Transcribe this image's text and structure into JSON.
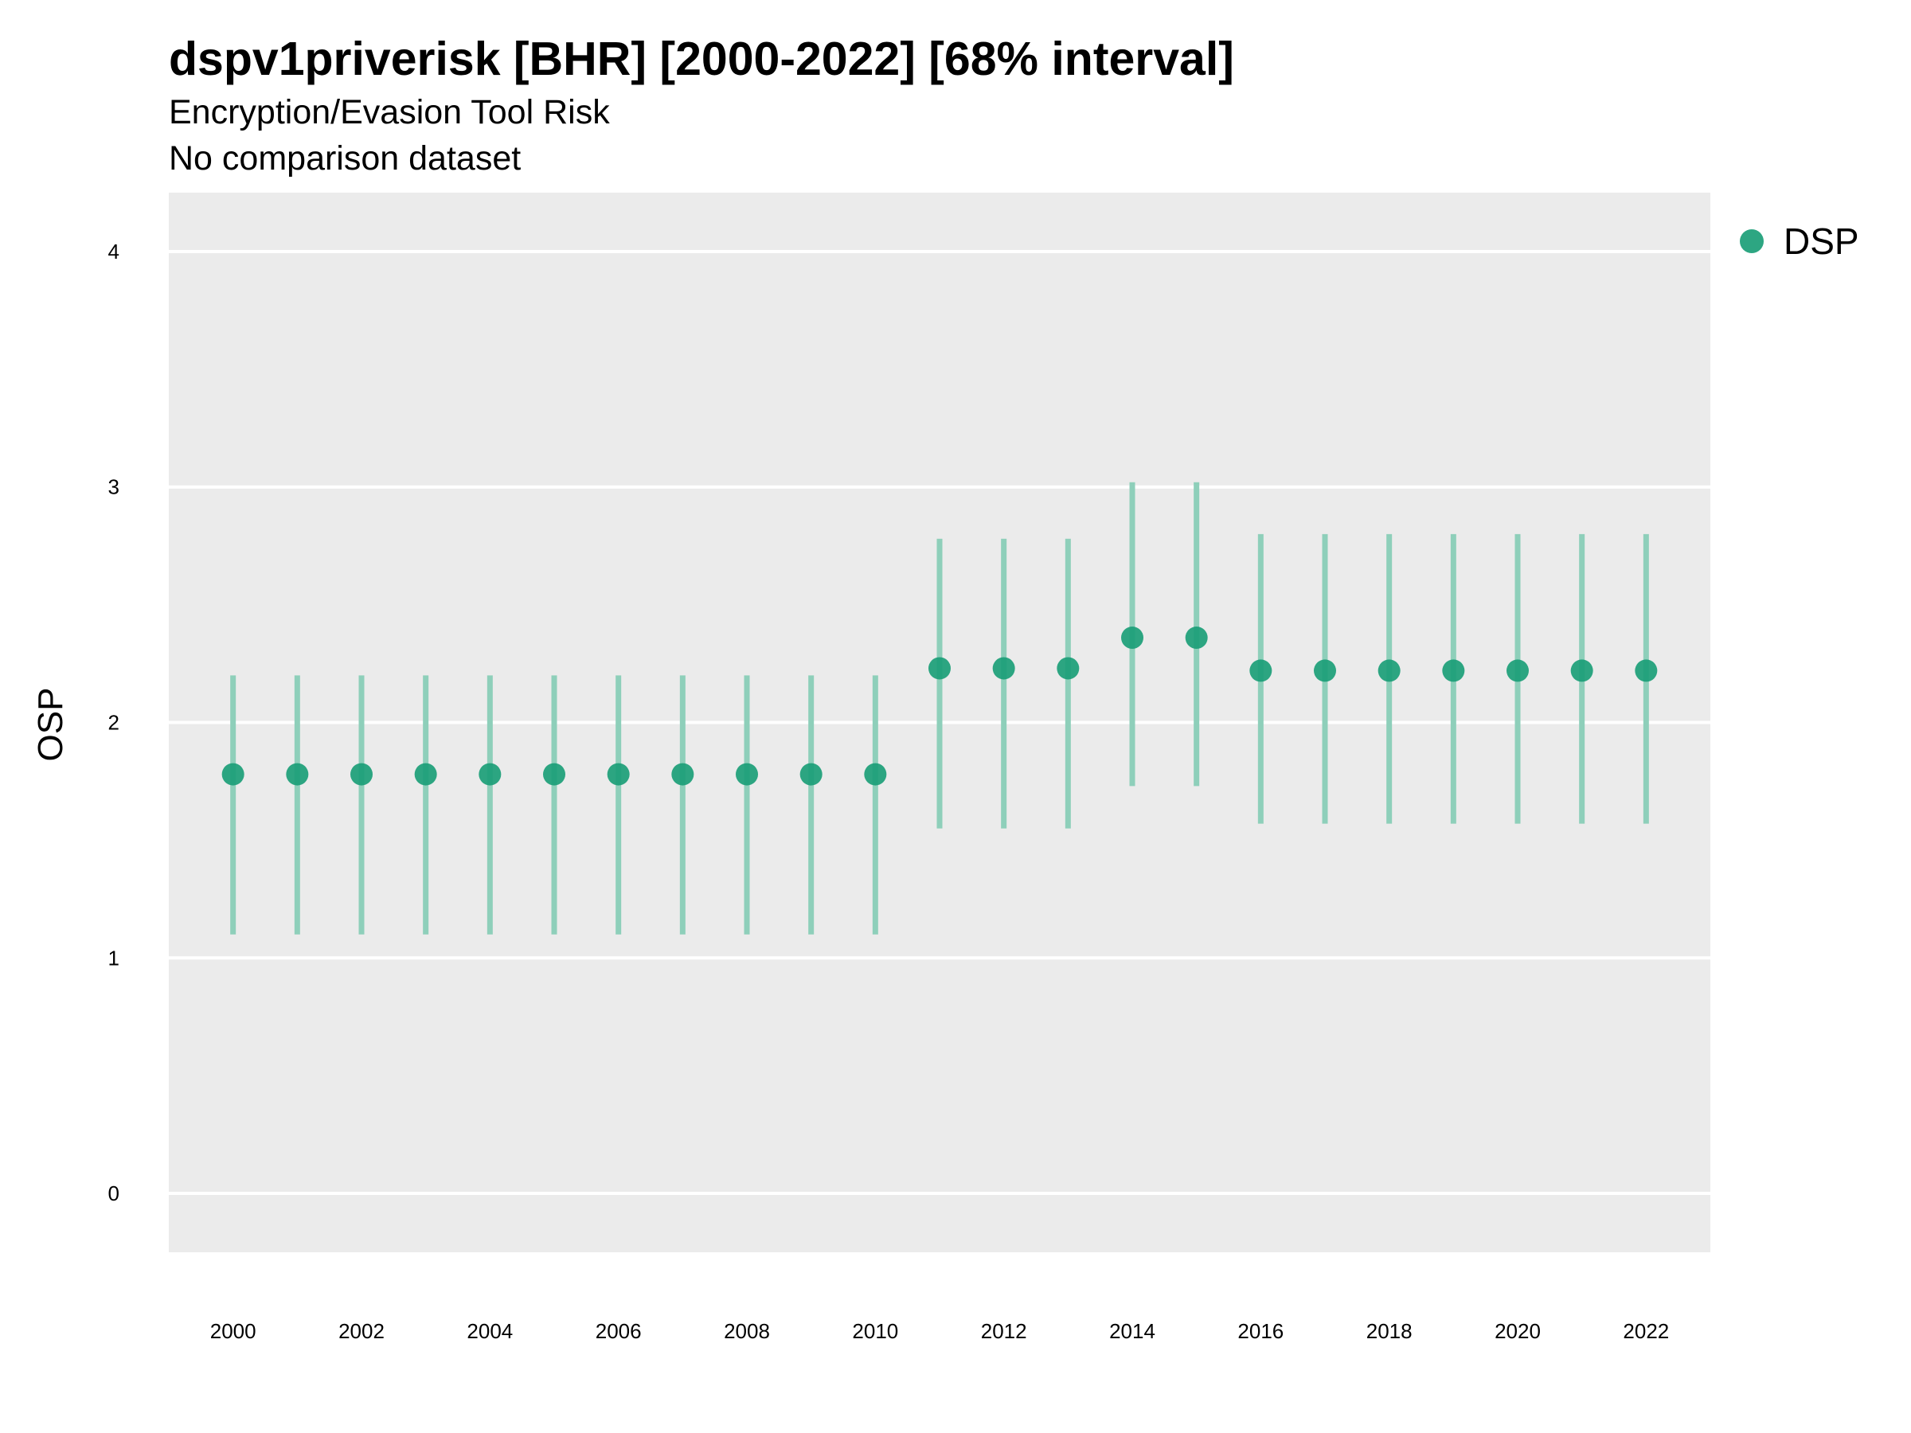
{
  "chart_data": {
    "type": "scatter",
    "title": "dspv1priverisk [BHR] [2000-2022] [68% interval]",
    "subtitle": "Encryption/Evasion Tool Risk",
    "subtitle2": "No comparison dataset",
    "xlabel": "",
    "ylabel": "OSP",
    "ylim": [
      -0.25,
      4.25
    ],
    "yticks": [
      0,
      1,
      2,
      3,
      4
    ],
    "xlim": [
      1999,
      2023
    ],
    "xticks": [
      2000,
      2002,
      2004,
      2006,
      2008,
      2010,
      2012,
      2014,
      2016,
      2018,
      2020,
      2022
    ],
    "grid": true,
    "legend_position": "right",
    "colors": {
      "panel_background": "#EBEBEB",
      "gridline": "#FFFFFF",
      "point": "#1B9E77",
      "interval": "#8ECFBA"
    },
    "series": [
      {
        "name": "DSP",
        "x": [
          2000,
          2001,
          2002,
          2003,
          2004,
          2005,
          2006,
          2007,
          2008,
          2009,
          2010,
          2011,
          2012,
          2013,
          2014,
          2015,
          2016,
          2017,
          2018,
          2019,
          2020,
          2021,
          2022
        ],
        "y": [
          1.78,
          1.78,
          1.78,
          1.78,
          1.78,
          1.78,
          1.78,
          1.78,
          1.78,
          1.78,
          1.78,
          2.23,
          2.23,
          2.23,
          2.36,
          2.36,
          2.22,
          2.22,
          2.22,
          2.22,
          2.22,
          2.22,
          2.22
        ],
        "lower": [
          1.1,
          1.1,
          1.1,
          1.1,
          1.1,
          1.1,
          1.1,
          1.1,
          1.1,
          1.1,
          1.1,
          1.55,
          1.55,
          1.55,
          1.73,
          1.73,
          1.57,
          1.57,
          1.57,
          1.57,
          1.57,
          1.57,
          1.57
        ],
        "upper": [
          2.2,
          2.2,
          2.2,
          2.2,
          2.2,
          2.2,
          2.2,
          2.2,
          2.2,
          2.2,
          2.2,
          2.78,
          2.78,
          2.78,
          3.02,
          3.02,
          2.8,
          2.8,
          2.8,
          2.8,
          2.8,
          2.8,
          2.8
        ]
      }
    ]
  }
}
